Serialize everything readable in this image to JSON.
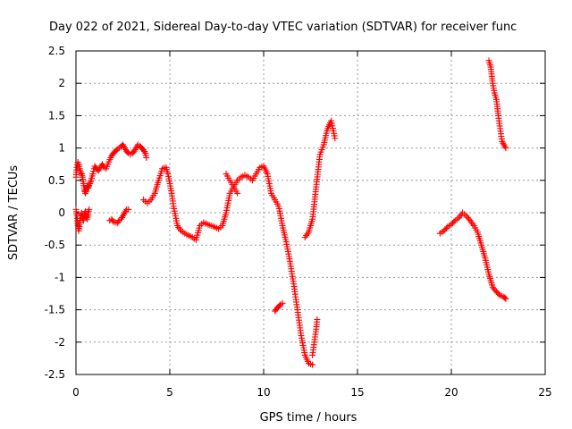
{
  "chart_data": {
    "type": "scatter",
    "title": "Day 022 of 2021, Sidereal Day-to-day VTEC variation (SDTVAR) for receiver func",
    "xlabel": "GPS time / hours",
    "ylabel": "SDTVAR / TECUs",
    "xlim": [
      0,
      25
    ],
    "ylim": [
      -2.5,
      2.5
    ],
    "xticks": [
      "0",
      "5",
      "10",
      "15",
      "20",
      "25"
    ],
    "yticks": [
      "2.5",
      "2",
      "1.5",
      "1",
      "0.5",
      "0",
      "-0.5",
      "-1",
      "-1.5",
      "-2",
      "-2.5"
    ],
    "grid": true,
    "marker_color": "#ff0000",
    "marker": "plus",
    "segments": [
      {
        "x": [
          0.0,
          0.05,
          0.1,
          0.15,
          0.2,
          0.25,
          0.3,
          0.35,
          0.4,
          0.45,
          0.5,
          0.55,
          0.6,
          0.65,
          0.7,
          0.75,
          0.8,
          0.9,
          1.0,
          1.1,
          1.2,
          1.3,
          1.4,
          1.5,
          1.6,
          1.7,
          1.8,
          1.9,
          2.0,
          2.1,
          2.2,
          2.3,
          2.4,
          2.5,
          2.6,
          2.7,
          2.8,
          2.9,
          3.0,
          3.1,
          3.2,
          3.3,
          3.4,
          3.5,
          3.6,
          3.7,
          3.75
        ],
        "y": [
          0.55,
          0.7,
          0.78,
          0.75,
          0.68,
          0.62,
          0.6,
          0.55,
          0.45,
          0.35,
          0.3,
          0.35,
          0.42,
          0.38,
          0.42,
          0.45,
          0.5,
          0.6,
          0.72,
          0.68,
          0.65,
          0.7,
          0.75,
          0.7,
          0.68,
          0.75,
          0.82,
          0.88,
          0.92,
          0.95,
          0.98,
          1.0,
          1.02,
          1.05,
          1.0,
          0.95,
          0.92,
          0.9,
          0.92,
          0.95,
          1.0,
          1.05,
          1.03,
          1.0,
          0.97,
          0.92,
          0.85
        ]
      },
      {
        "x": [
          0.0,
          0.05,
          0.1,
          0.15,
          0.2,
          0.25,
          0.3,
          0.35,
          0.4,
          0.45,
          0.5,
          0.55,
          0.6,
          0.65,
          0.7
        ],
        "y": [
          0.05,
          -0.05,
          -0.2,
          -0.28,
          -0.15,
          -0.05,
          0.0,
          -0.08,
          -0.12,
          -0.02,
          0.02,
          -0.05,
          -0.1,
          0.0,
          0.05
        ]
      },
      {
        "x": [
          1.8,
          1.9,
          2.0,
          2.1,
          2.2,
          2.3,
          2.4,
          2.5,
          2.6,
          2.7,
          2.8
        ],
        "y": [
          -0.12,
          -0.1,
          -0.14,
          -0.15,
          -0.16,
          -0.12,
          -0.1,
          -0.05,
          0.0,
          0.05,
          0.05
        ]
      },
      {
        "x": [
          3.6,
          3.8,
          4.0,
          4.2,
          4.4,
          4.6,
          4.8,
          4.9,
          5.0,
          5.1,
          5.2,
          5.4,
          5.6,
          5.8,
          6.0,
          6.2,
          6.4,
          6.6,
          6.8,
          7.0,
          7.2,
          7.4,
          7.6,
          7.8,
          8.0,
          8.1,
          8.2,
          8.4,
          8.6,
          8.8,
          9.0,
          9.2,
          9.4,
          9.6,
          9.8,
          10.0,
          10.2,
          10.4,
          10.6,
          10.8,
          11.0,
          11.2,
          11.4,
          11.6,
          11.8,
          12.0,
          12.2,
          12.4,
          12.6
        ],
        "y": [
          0.2,
          0.15,
          0.2,
          0.3,
          0.5,
          0.68,
          0.7,
          0.6,
          0.45,
          0.3,
          0.1,
          -0.2,
          -0.28,
          -0.32,
          -0.35,
          -0.38,
          -0.42,
          -0.2,
          -0.15,
          -0.18,
          -0.2,
          -0.22,
          -0.25,
          -0.2,
          0.0,
          0.15,
          0.3,
          0.4,
          0.5,
          0.55,
          0.58,
          0.55,
          0.5,
          0.6,
          0.7,
          0.72,
          0.6,
          0.3,
          0.2,
          0.1,
          -0.2,
          -0.45,
          -0.75,
          -1.1,
          -1.5,
          -1.9,
          -2.2,
          -2.33,
          -2.35
        ]
      },
      {
        "x": [
          8.0,
          8.2,
          8.4,
          8.6
        ],
        "y": [
          0.6,
          0.5,
          0.4,
          0.3
        ]
      },
      {
        "x": [
          10.6,
          10.7,
          10.8,
          10.9,
          11.0
        ],
        "y": [
          -1.52,
          -1.48,
          -1.45,
          -1.42,
          -1.4
        ]
      },
      {
        "x": [
          12.2,
          12.4,
          12.6,
          12.8,
          13.0,
          13.2,
          13.4,
          13.6,
          13.8
        ],
        "y": [
          -0.38,
          -0.3,
          -0.1,
          0.4,
          0.9,
          1.05,
          1.3,
          1.42,
          1.15
        ]
      },
      {
        "x": [
          12.6,
          12.7,
          12.8,
          12.85
        ],
        "y": [
          -2.2,
          -2.0,
          -1.8,
          -1.65
        ]
      },
      {
        "x": [
          19.4,
          19.6,
          19.8,
          20.0,
          20.2,
          20.4,
          20.6,
          20.8,
          21.0,
          21.2,
          21.4,
          21.6,
          21.8,
          22.0,
          22.2,
          22.4,
          22.6,
          22.8,
          22.9
        ],
        "y": [
          -0.32,
          -0.28,
          -0.22,
          -0.18,
          -0.12,
          -0.08,
          0.0,
          -0.05,
          -0.12,
          -0.2,
          -0.3,
          -0.5,
          -0.7,
          -0.95,
          -1.15,
          -1.22,
          -1.28,
          -1.3,
          -1.33
        ]
      },
      {
        "x": [
          22.0,
          22.1,
          22.2,
          22.3,
          22.4,
          22.5,
          22.6,
          22.7,
          22.8,
          22.9
        ],
        "y": [
          2.35,
          2.25,
          2.0,
          1.85,
          1.75,
          1.5,
          1.3,
          1.1,
          1.05,
          1.0
        ]
      }
    ]
  }
}
